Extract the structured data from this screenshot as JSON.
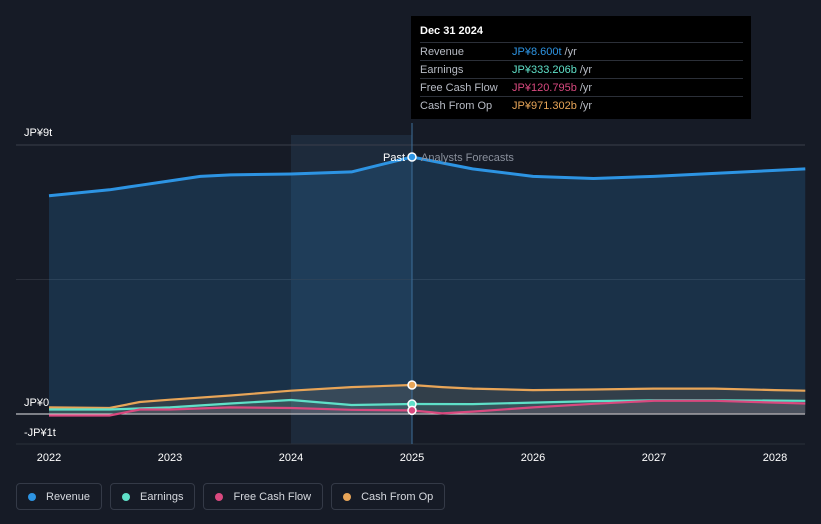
{
  "chart_data": {
    "type": "area",
    "x_range": [
      2021.75,
      2028.25
    ],
    "y_range": [
      -1,
      9
    ],
    "y_axis_labels": [
      {
        "value": 9,
        "label": "JP¥9t"
      },
      {
        "value": 0,
        "label": "JP¥0"
      },
      {
        "value": -1,
        "label": "-JP¥1t"
      }
    ],
    "x_ticks": [
      {
        "value": 2022,
        "label": "2022"
      },
      {
        "value": 2023,
        "label": "2023"
      },
      {
        "value": 2024,
        "label": "2024"
      },
      {
        "value": 2025,
        "label": "2025"
      },
      {
        "value": 2026,
        "label": "2026"
      },
      {
        "value": 2027,
        "label": "2027"
      },
      {
        "value": 2028,
        "label": "2028"
      }
    ],
    "divider_x": 2025,
    "shaded_from_x": 2024,
    "past_label": "Past",
    "forecast_label": "Analysts Forecasts",
    "series": [
      {
        "name": "Revenue",
        "color": "#2d94e3",
        "points": [
          [
            2022,
            7.3
          ],
          [
            2022.5,
            7.5
          ],
          [
            2022.75,
            7.65
          ],
          [
            2023,
            7.8
          ],
          [
            2023.25,
            7.95
          ],
          [
            2023.5,
            8.0
          ],
          [
            2024,
            8.03
          ],
          [
            2024.5,
            8.1
          ],
          [
            2025,
            8.6
          ],
          [
            2025.5,
            8.2
          ],
          [
            2026,
            7.95
          ],
          [
            2026.5,
            7.88
          ],
          [
            2027,
            7.95
          ],
          [
            2027.5,
            8.05
          ],
          [
            2028,
            8.15
          ],
          [
            2028.25,
            8.2
          ]
        ]
      },
      {
        "name": "Earnings",
        "color": "#5fe0c8",
        "points": [
          [
            2022,
            0.15
          ],
          [
            2022.5,
            0.15
          ],
          [
            2023,
            0.22
          ],
          [
            2023.5,
            0.35
          ],
          [
            2024,
            0.47
          ],
          [
            2024.5,
            0.3
          ],
          [
            2025,
            0.333
          ],
          [
            2025.5,
            0.33
          ],
          [
            2026,
            0.38
          ],
          [
            2026.5,
            0.43
          ],
          [
            2027,
            0.46
          ],
          [
            2027.5,
            0.46
          ],
          [
            2028,
            0.45
          ],
          [
            2028.25,
            0.44
          ]
        ]
      },
      {
        "name": "Free Cash Flow",
        "color": "#d9497f",
        "points": [
          [
            2022,
            -0.05
          ],
          [
            2022.5,
            -0.05
          ],
          [
            2022.75,
            0.15
          ],
          [
            2023,
            0.15
          ],
          [
            2023.5,
            0.22
          ],
          [
            2024,
            0.2
          ],
          [
            2024.5,
            0.14
          ],
          [
            2025,
            0.121
          ],
          [
            2025.25,
            0.02
          ],
          [
            2025.5,
            0.08
          ],
          [
            2026,
            0.22
          ],
          [
            2026.5,
            0.34
          ],
          [
            2027,
            0.44
          ],
          [
            2027.5,
            0.44
          ],
          [
            2028,
            0.38
          ],
          [
            2028.25,
            0.35
          ]
        ]
      },
      {
        "name": "Cash From Op",
        "color": "#e8a558",
        "points": [
          [
            2022,
            0.22
          ],
          [
            2022.5,
            0.2
          ],
          [
            2022.75,
            0.4
          ],
          [
            2023,
            0.48
          ],
          [
            2023.5,
            0.62
          ],
          [
            2024,
            0.78
          ],
          [
            2024.5,
            0.9
          ],
          [
            2025,
            0.971
          ],
          [
            2025.25,
            0.9
          ],
          [
            2025.5,
            0.85
          ],
          [
            2026,
            0.8
          ],
          [
            2026.5,
            0.82
          ],
          [
            2027,
            0.85
          ],
          [
            2027.5,
            0.85
          ],
          [
            2028,
            0.8
          ],
          [
            2028.25,
            0.78
          ]
        ]
      }
    ]
  },
  "tooltip": {
    "date": "Dec 31 2024",
    "rows": [
      {
        "label": "Revenue",
        "value": "JP¥8.600t",
        "unit": "/yr",
        "color": "#2d94e3"
      },
      {
        "label": "Earnings",
        "value": "JP¥333.206b",
        "unit": "/yr",
        "color": "#5fe0c8"
      },
      {
        "label": "Free Cash Flow",
        "value": "JP¥120.795b",
        "unit": "/yr",
        "color": "#d9497f"
      },
      {
        "label": "Cash From Op",
        "value": "JP¥971.302b",
        "unit": "/yr",
        "color": "#e8a558"
      }
    ]
  },
  "legend": [
    {
      "label": "Revenue",
      "color": "#2d94e3"
    },
    {
      "label": "Earnings",
      "color": "#5fe0c8"
    },
    {
      "label": "Free Cash Flow",
      "color": "#d9497f"
    },
    {
      "label": "Cash From Op",
      "color": "#e8a558"
    }
  ]
}
